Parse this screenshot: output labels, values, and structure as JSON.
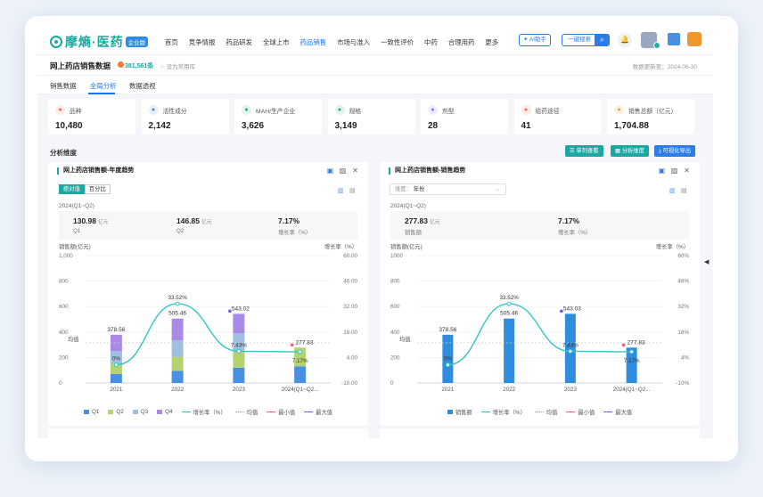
{
  "app": {
    "logo_text": "摩熵·医药",
    "logo_badge": "企业版",
    "nav": [
      "首页",
      "竞争情报",
      "药品研发",
      "全球上市",
      "药品销售",
      "市场与准入",
      "一致性评价",
      "中药",
      "合理用药",
      "更多"
    ],
    "nav_active": "药品销售",
    "ai_button": "AI助手",
    "search_placeholder": "一键搜索",
    "accent": "#1aa8a0",
    "primary": "#2a7de8"
  },
  "page": {
    "title": "网上药店销售数据",
    "count": "381,561条",
    "favorite": "设为常用库",
    "updated": "数据更新至：2024-06-30"
  },
  "tabs": [
    "销售数据",
    "全局分析",
    "数据透视"
  ],
  "active_tab": "全局分析",
  "metrics": [
    {
      "label": "品种",
      "value": "10,480",
      "icon": "pill-icon",
      "color": "#f4694b"
    },
    {
      "label": "活性成分",
      "value": "2,142",
      "icon": "molecule-icon",
      "color": "#4a7de8"
    },
    {
      "label": "MAH/生产企业",
      "value": "3,626",
      "icon": "factory-icon",
      "color": "#25a86a"
    },
    {
      "label": "规格",
      "value": "3,149",
      "icon": "spec-icon",
      "color": "#25a86a"
    },
    {
      "label": "剂型",
      "value": "28",
      "icon": "capsule-icon",
      "color": "#8b6fe0"
    },
    {
      "label": "给药途径",
      "value": "41",
      "icon": "route-icon",
      "color": "#f4694b"
    },
    {
      "label": "销售总额（亿元）",
      "value": "1,704.88",
      "icon": "coin-icon",
      "color": "#f0a020"
    }
  ],
  "dimension": {
    "title": "分析维度",
    "actions": [
      "单列查看",
      "分析维度",
      "可视化导出"
    ]
  },
  "left_panel": {
    "title": "网上药店销售额-年度趋势",
    "seg": [
      "绝对值",
      "百分比"
    ],
    "period": "2024(Q1~Q2)",
    "stats": [
      {
        "value": "130.98",
        "unit": "亿元",
        "label": "Q1"
      },
      {
        "value": "146.85",
        "unit": "亿元",
        "label": "Q2"
      },
      {
        "value": "7.17%",
        "unit": "",
        "label": "增长率（%）"
      }
    ],
    "y_left_label": "销售额(亿元)",
    "y_right_label": "增长率（%）",
    "y_left_ticks": [
      "1,000",
      "800",
      "600",
      "400",
      "200",
      "0"
    ],
    "y_right_ticks": [
      "60.00",
      "46.00",
      "32.00",
      "18.00",
      "4.00",
      "-10.00"
    ],
    "categories": [
      "2021",
      "2022",
      "2023",
      "2024(Q1~Q2..."
    ],
    "avg_label": "均值",
    "legend": [
      "Q1",
      "Q2",
      "Q3",
      "Q4",
      "增长率（%）",
      "均值",
      "最小值",
      "最大值"
    ]
  },
  "right_panel": {
    "title": "网上药店销售额-销售趋势",
    "select_label": "维度：",
    "select_value": "年份",
    "period": "2024(Q1~Q2)",
    "stats": [
      {
        "value": "277.83",
        "unit": "亿元",
        "label": "销售额"
      },
      {
        "value": "7.17%",
        "unit": "",
        "label": "增长率（%）"
      }
    ],
    "y_left_label": "销售额(亿元)",
    "y_right_label": "增长率（%）",
    "y_left_ticks": [
      "1000",
      "800",
      "600",
      "400",
      "200",
      "0"
    ],
    "y_right_ticks": [
      "60%",
      "46%",
      "32%",
      "18%",
      "4%",
      "-10%"
    ],
    "categories": [
      "2021",
      "2022",
      "2023",
      "2024(Q1~Q2..."
    ],
    "avg_label": "均值",
    "legend": [
      "销售额",
      "增长率（%）",
      "均值",
      "最小值",
      "最大值"
    ]
  },
  "chart_data": [
    {
      "type": "bar",
      "title": "网上药店销售额-年度趋势",
      "categories": [
        "2021",
        "2022",
        "2023",
        "2024(Q1~Q2)"
      ],
      "series": [
        {
          "name": "Q1",
          "values": [
            70,
            95,
            120,
            130.98
          ],
          "color": "#4a90e2"
        },
        {
          "name": "Q2",
          "values": [
            80,
            110,
            130,
            146.85
          ],
          "color": "#b5d36d"
        },
        {
          "name": "Q3",
          "values": [
            100,
            130,
            140,
            0
          ],
          "color": "#9fbfe0"
        },
        {
          "name": "Q4",
          "values": [
            128.56,
            170.46,
            153.02,
            0
          ],
          "color": "#a98ae6"
        }
      ],
      "totals": [
        378.56,
        505.46,
        543.02,
        277.83
      ],
      "growth": {
        "name": "增长率（%）",
        "values": [
          0,
          33.52,
          7.43,
          7.17
        ]
      },
      "ylim": [
        0,
        1000
      ],
      "y2lim": [
        -10,
        60
      ]
    },
    {
      "type": "bar",
      "title": "网上药店销售额-销售趋势",
      "categories": [
        "2021",
        "2022",
        "2023",
        "2024(Q1~Q2)"
      ],
      "series": [
        {
          "name": "销售额",
          "values": [
            378.56,
            505.46,
            543.03,
            277.83
          ],
          "color": "#2f8de0"
        }
      ],
      "growth": {
        "name": "增长率（%）",
        "values": [
          0,
          33.52,
          7.43,
          7.17
        ]
      },
      "ylim": [
        0,
        1000
      ],
      "y2lim": [
        -10,
        60
      ]
    }
  ]
}
